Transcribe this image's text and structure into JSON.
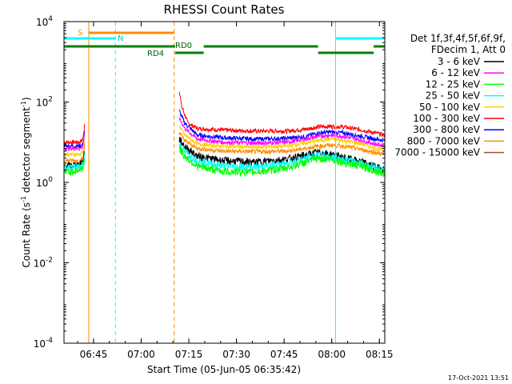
{
  "chart_data": {
    "type": "line",
    "title": "RHESSI Count Rates",
    "xlabel": "Start Time (05-Jun-05 06:35:42)",
    "ylabel_main": "Count Rate (s",
    "ylabel_sup": "-1",
    "ylabel_mid": " detector segment",
    "ylabel_sup2": "-1",
    "ylabel_end": ")",
    "x_unit": "minutes after 06:35:42",
    "xlim": [
      0,
      101
    ],
    "ylim": [
      0.0001,
      10000
    ],
    "yscale": "log",
    "x_ticks": [
      {
        "label": "06:45",
        "value": 9.3
      },
      {
        "label": "07:00",
        "value": 24.3
      },
      {
        "label": "07:15",
        "value": 39.3
      },
      {
        "label": "07:30",
        "value": 54.3
      },
      {
        "label": "07:45",
        "value": 69.3
      },
      {
        "label": "08:00",
        "value": 84.3
      },
      {
        "label": "08:15",
        "value": 99.3
      }
    ],
    "y_ticks": [
      {
        "base": "10",
        "exp": "-4",
        "value": 0.0001
      },
      {
        "base": "10",
        "exp": "-2",
        "value": 0.01
      },
      {
        "base": "10",
        "exp": "0",
        "value": 1
      },
      {
        "base": "10",
        "exp": "2",
        "value": 100
      },
      {
        "base": "10",
        "exp": "4",
        "value": 10000
      }
    ],
    "legend": {
      "position": "right",
      "header1": "Det 1f,3f,4f,5f,6f,9f,",
      "header2": "FDecim 1, Att 0",
      "entries": [
        {
          "name": "3 - 6 keV",
          "color": "#000000"
        },
        {
          "name": "6 - 12 keV",
          "color": "#ff00ff"
        },
        {
          "name": "12 - 25 keV",
          "color": "#00ff00"
        },
        {
          "name": "25 - 50 keV",
          "color": "#00ffff"
        },
        {
          "name": "50 - 100 keV",
          "color": "#ffd000"
        },
        {
          "name": "100 - 300 keV",
          "color": "#ff0000"
        },
        {
          "name": "300 - 800 keV",
          "color": "#0000ff"
        },
        {
          "name": "800 - 7000 keV",
          "color": "#ff8c00"
        },
        {
          "name": "7000 - 15000 keV",
          "color": "#a0522d"
        }
      ]
    },
    "series": [
      {
        "name": "100 - 300 keV",
        "color": "#ff0000",
        "points": [
          [
            0,
            10
          ],
          [
            5,
            10
          ],
          [
            6,
            12
          ],
          [
            6.5,
            30
          ],
          [
            36.3,
            200
          ],
          [
            37,
            80
          ],
          [
            39,
            30
          ],
          [
            42,
            22
          ],
          [
            50,
            20
          ],
          [
            60,
            19
          ],
          [
            70,
            19
          ],
          [
            76,
            21
          ],
          [
            80,
            24
          ],
          [
            84,
            25
          ],
          [
            88,
            24
          ],
          [
            94,
            20
          ],
          [
            98,
            17
          ],
          [
            101,
            15
          ]
        ]
      },
      {
        "name": "300 - 800 keV",
        "color": "#0000ff",
        "points": [
          [
            0,
            8
          ],
          [
            5,
            8
          ],
          [
            6,
            9
          ],
          [
            6.5,
            20
          ],
          [
            36.3,
            60
          ],
          [
            38,
            30
          ],
          [
            42,
            15
          ],
          [
            50,
            13
          ],
          [
            60,
            12
          ],
          [
            70,
            12.5
          ],
          [
            76,
            14
          ],
          [
            80,
            17
          ],
          [
            84,
            18
          ],
          [
            88,
            17
          ],
          [
            94,
            14
          ],
          [
            98,
            12
          ],
          [
            101,
            11
          ]
        ]
      },
      {
        "name": "6 - 12 keV",
        "color": "#ff00ff",
        "points": [
          [
            0,
            7
          ],
          [
            5,
            7
          ],
          [
            6,
            8
          ],
          [
            6.5,
            16
          ],
          [
            36.3,
            40
          ],
          [
            38,
            22
          ],
          [
            42,
            12
          ],
          [
            50,
            10
          ],
          [
            60,
            9.5
          ],
          [
            70,
            10
          ],
          [
            76,
            12
          ],
          [
            80,
            14
          ],
          [
            84,
            15
          ],
          [
            88,
            14
          ],
          [
            94,
            11
          ],
          [
            98,
            9
          ],
          [
            101,
            8
          ]
        ]
      },
      {
        "name": "50 - 100 keV",
        "color": "#ffd000",
        "points": [
          [
            0,
            5
          ],
          [
            5,
            5
          ],
          [
            6,
            6
          ],
          [
            6.5,
            12
          ],
          [
            36.3,
            25
          ],
          [
            38,
            15
          ],
          [
            42,
            9
          ],
          [
            50,
            8
          ],
          [
            60,
            7.5
          ],
          [
            70,
            8
          ],
          [
            76,
            9.5
          ],
          [
            80,
            11
          ],
          [
            84,
            12
          ],
          [
            88,
            11
          ],
          [
            94,
            9
          ],
          [
            98,
            7
          ],
          [
            101,
            6.5
          ]
        ]
      },
      {
        "name": "800 - 7000 keV",
        "color": "#ff8c00",
        "points": [
          [
            0,
            3.5
          ],
          [
            5,
            3.5
          ],
          [
            6,
            4
          ],
          [
            6.5,
            9
          ],
          [
            36.3,
            18
          ],
          [
            38,
            11
          ],
          [
            42,
            7
          ],
          [
            50,
            6
          ],
          [
            60,
            5.8
          ],
          [
            70,
            6
          ],
          [
            76,
            7
          ],
          [
            80,
            8
          ],
          [
            84,
            8.5
          ],
          [
            88,
            8
          ],
          [
            94,
            6.5
          ],
          [
            98,
            5.5
          ],
          [
            101,
            5
          ]
        ]
      },
      {
        "name": "3 - 6 keV",
        "color": "#000000",
        "points": [
          [
            0,
            2.5
          ],
          [
            5,
            2.8
          ],
          [
            6,
            3.5
          ],
          [
            6.5,
            6
          ],
          [
            36.3,
            12
          ],
          [
            38,
            8
          ],
          [
            42,
            4.5
          ],
          [
            50,
            3.5
          ],
          [
            60,
            3.2
          ],
          [
            70,
            3.8
          ],
          [
            76,
            4.8
          ],
          [
            80,
            5.6
          ],
          [
            84,
            5
          ],
          [
            88,
            4.2
          ],
          [
            94,
            3.2
          ],
          [
            98,
            2.5
          ],
          [
            101,
            2
          ]
        ]
      },
      {
        "name": "25 - 50 keV",
        "color": "#00ffff",
        "points": [
          [
            0,
            2.2
          ],
          [
            5,
            2.5
          ],
          [
            6,
            3
          ],
          [
            6.5,
            5
          ],
          [
            36.3,
            9
          ],
          [
            38,
            6
          ],
          [
            42,
            3.5
          ],
          [
            50,
            2.6
          ],
          [
            60,
            2.4
          ],
          [
            70,
            3
          ],
          [
            76,
            4
          ],
          [
            80,
            4.8
          ],
          [
            84,
            4.4
          ],
          [
            88,
            3.8
          ],
          [
            94,
            3
          ],
          [
            98,
            2.4
          ],
          [
            101,
            2
          ]
        ]
      },
      {
        "name": "12 - 25 keV",
        "color": "#00ff00",
        "points": [
          [
            0,
            1.8
          ],
          [
            5,
            2
          ],
          [
            6,
            2.5
          ],
          [
            6.5,
            4
          ],
          [
            36.3,
            7
          ],
          [
            38,
            4.5
          ],
          [
            42,
            2.5
          ],
          [
            50,
            1.9
          ],
          [
            60,
            1.8
          ],
          [
            70,
            2.3
          ],
          [
            76,
            3.2
          ],
          [
            80,
            4
          ],
          [
            84,
            3.8
          ],
          [
            88,
            3.2
          ],
          [
            94,
            2.5
          ],
          [
            98,
            2
          ],
          [
            101,
            1.7
          ]
        ]
      }
    ],
    "annotations": {
      "s_label": "S",
      "n_label": "N",
      "rd0_label": "RD0",
      "rd4_label": "RD4",
      "timestamp": "17-Oct-2021 13:51"
    },
    "bars": {
      "saa": {
        "color": "#ff8c00",
        "from": 7.8,
        "to": 34.7
      },
      "night": [
        {
          "color": "#00ffff",
          "from": 0,
          "to": 16.2
        },
        {
          "color": "#00ffff",
          "from": 85.5,
          "to": 101
        }
      ],
      "rd0": [
        {
          "color": "#008000",
          "from": 0,
          "to": 35
        },
        {
          "color": "#008000",
          "from": 44,
          "to": 80
        },
        {
          "color": "#008000",
          "from": 97.5,
          "to": 101
        }
      ],
      "rd4": [
        {
          "color": "#008000",
          "from": 35,
          "to": 44
        },
        {
          "color": "#008000",
          "from": 80,
          "to": 97.5
        }
      ]
    },
    "vlines": [
      {
        "x": 0,
        "color": "#00ffff",
        "style": "solid"
      },
      {
        "x": 7.8,
        "color": "#ff8c00",
        "style": "solid"
      },
      {
        "x": 16.2,
        "color": "#00ffff",
        "style": "dashed"
      },
      {
        "x": 34.7,
        "color": "#ff8c00",
        "style": "dashed"
      },
      {
        "x": 85.5,
        "color": "#00ffff",
        "style": "solid"
      },
      {
        "x": 101,
        "color": "#00ffff",
        "style": "dashed"
      }
    ],
    "grid": false
  }
}
